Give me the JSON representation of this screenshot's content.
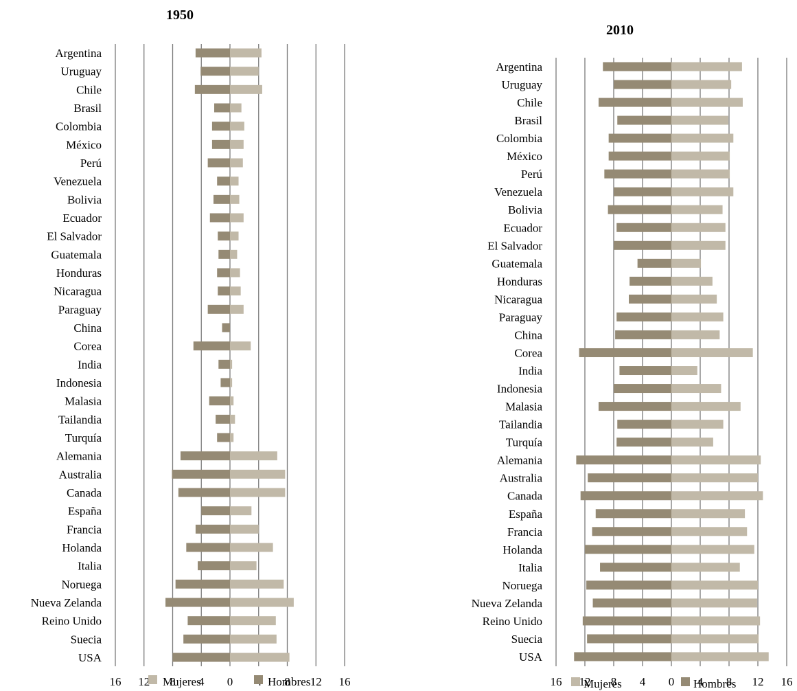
{
  "chart_data": [
    {
      "type": "bar",
      "title": "1950",
      "categories": [
        "Argentina",
        "Uruguay",
        "Chile",
        "Brasil",
        "Colombia",
        "México",
        "Perú",
        "Venezuela",
        "Bolivia",
        "Ecuador",
        "El Salvador",
        "Guatemala",
        "Honduras",
        "Nicaragua",
        "Paraguay",
        "China",
        "Corea",
        "India",
        "Indonesia",
        "Malasia",
        "Tailandia",
        "Turquía",
        "Alemania",
        "Australia",
        "Canada",
        "España",
        "Francia",
        "Holanda",
        "Italia",
        "Noruega",
        "Nueva Zelanda",
        "Reino Unido",
        "Suecia",
        "USA"
      ],
      "series": [
        {
          "name": "Mujeres",
          "color": "#c1b9a8",
          "values": [
            4.4,
            4.0,
            4.5,
            1.6,
            2.0,
            1.9,
            1.8,
            1.2,
            1.3,
            1.9,
            1.2,
            1.0,
            1.4,
            1.5,
            1.9,
            0.0,
            2.9,
            0.3,
            0.3,
            0.5,
            0.7,
            0.5,
            6.6,
            7.7,
            7.7,
            3.0,
            4.0,
            6.0,
            3.7,
            7.5,
            8.9,
            6.4,
            6.5,
            8.3
          ]
        },
        {
          "name": "Hombres",
          "color": "#958a74",
          "values": [
            4.8,
            4.1,
            4.9,
            2.2,
            2.5,
            2.5,
            3.1,
            1.8,
            2.3,
            2.8,
            1.7,
            1.6,
            1.8,
            1.7,
            3.1,
            1.1,
            5.1,
            1.6,
            1.3,
            2.9,
            2.0,
            1.8,
            6.9,
            8.1,
            7.2,
            4.0,
            4.8,
            6.1,
            4.5,
            7.6,
            9.0,
            5.9,
            6.5,
            8.0
          ]
        }
      ],
      "xlim": [
        -16,
        16
      ],
      "xticks": [
        "16",
        "12",
        "8",
        "4",
        "0",
        "4",
        "8",
        "12",
        "16"
      ],
      "legend": "bottom"
    },
    {
      "type": "bar",
      "title": "2010",
      "categories": [
        "Argentina",
        "Uruguay",
        "Chile",
        "Brasil",
        "Colombia",
        "México",
        "Perú",
        "Venezuela",
        "Bolivia",
        "Ecuador",
        "El Salvador",
        "Guatemala",
        "Honduras",
        "Nicaragua",
        "Paraguay",
        "China",
        "Corea",
        "India",
        "Indonesia",
        "Malasia",
        "Tailandia",
        "Turquía",
        "Alemania",
        "Australia",
        "Canada",
        "España",
        "Francia",
        "Holanda",
        "Italia",
        "Noruega",
        "Nueva Zelanda",
        "Reino Unido",
        "Suecia",
        "USA"
      ],
      "series": [
        {
          "name": "Mujeres",
          "color": "#c1b9a8",
          "values": [
            9.8,
            8.3,
            9.9,
            7.9,
            8.6,
            8.1,
            8.1,
            8.6,
            7.1,
            7.5,
            7.5,
            4.1,
            5.7,
            6.3,
            7.2,
            6.7,
            11.3,
            3.6,
            6.9,
            9.6,
            7.2,
            5.8,
            12.4,
            12.0,
            12.7,
            10.2,
            10.5,
            11.5,
            9.5,
            12.0,
            11.9,
            12.3,
            12.1,
            13.5
          ]
        },
        {
          "name": "Hombres",
          "color": "#958a74",
          "values": [
            9.5,
            8.0,
            10.1,
            7.5,
            8.7,
            8.7,
            9.3,
            8.0,
            8.8,
            7.6,
            8.0,
            4.7,
            5.8,
            5.9,
            7.6,
            7.8,
            12.8,
            7.2,
            8.0,
            10.1,
            7.5,
            7.6,
            13.2,
            11.6,
            12.6,
            10.5,
            11.0,
            12.0,
            9.9,
            11.8,
            10.9,
            12.3,
            11.7,
            13.5
          ]
        }
      ],
      "xlim": [
        -16,
        16
      ],
      "xticks": [
        "16",
        "12",
        "8",
        "4",
        "0",
        "4",
        "8",
        "12",
        "16"
      ],
      "legend": "bottom"
    }
  ]
}
